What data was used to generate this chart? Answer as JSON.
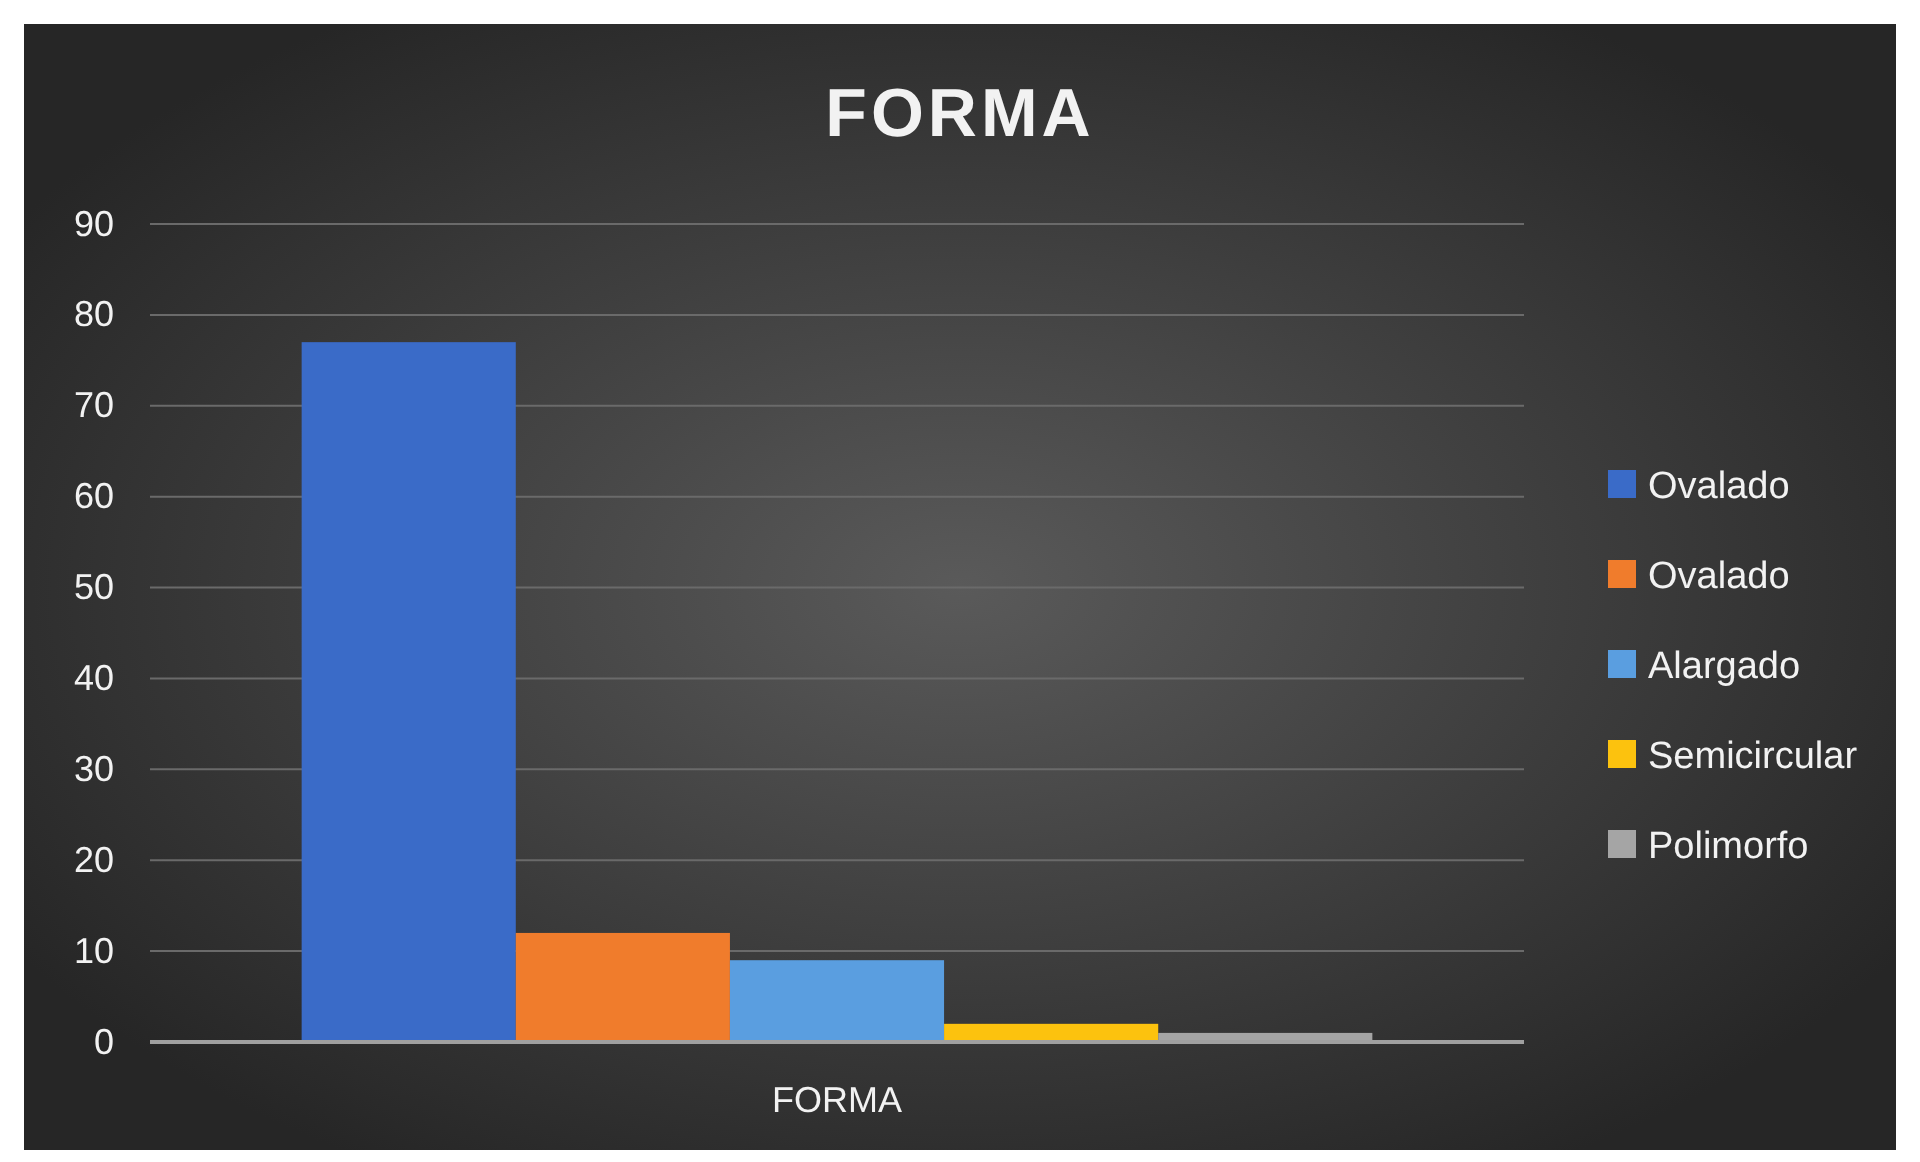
{
  "chart_data": {
    "type": "bar",
    "title": "FORMA",
    "categories": [
      "FORMA"
    ],
    "series": [
      {
        "name": "Ovalado",
        "color": "#3a6bc8",
        "values": [
          77
        ]
      },
      {
        "name": "Ovalado",
        "color": "#f07c2c",
        "values": [
          12
        ]
      },
      {
        "name": "Alargado",
        "color": "#5a9ee0",
        "values": [
          9
        ]
      },
      {
        "name": "Semicircular",
        "color": "#fcc20e",
        "values": [
          2
        ]
      },
      {
        "name": "Polimorfo",
        "color": "#a5a5a5",
        "values": [
          1
        ]
      }
    ],
    "ylim": [
      0,
      90
    ],
    "yticks": [
      0,
      10,
      20,
      30,
      40,
      50,
      60,
      70,
      80,
      90
    ],
    "grid": "y",
    "legend": "right"
  }
}
